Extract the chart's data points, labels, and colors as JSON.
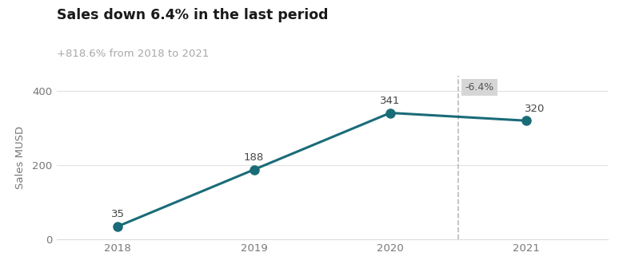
{
  "title": "Sales down 6.4% in the last period",
  "subtitle": "+818.6% from 2018 to 2021",
  "subtitle_color": "#a8a8a8",
  "title_color": "#1a1a1a",
  "years": [
    2018,
    2019,
    2020,
    2021
  ],
  "values": [
    35,
    188,
    341,
    320
  ],
  "line_color": "#1a6b78",
  "marker_color": "#1a6b78",
  "ylabel": "Sales MUSD",
  "ylim": [
    0,
    440
  ],
  "yticks": [
    0,
    200,
    400
  ],
  "xlim": [
    2017.55,
    2021.6
  ],
  "dashed_line_x": 2020.5,
  "annotation_label": "-6.4%",
  "annotation_bg_color": "#d6d6d6",
  "annotation_text_color": "#555555",
  "background_color": "#ffffff",
  "grid_color": "#e0e0e0",
  "point_labels": [
    "35",
    "188",
    "341",
    "320"
  ],
  "tick_color": "#777777",
  "spine_color": "#dddddd"
}
